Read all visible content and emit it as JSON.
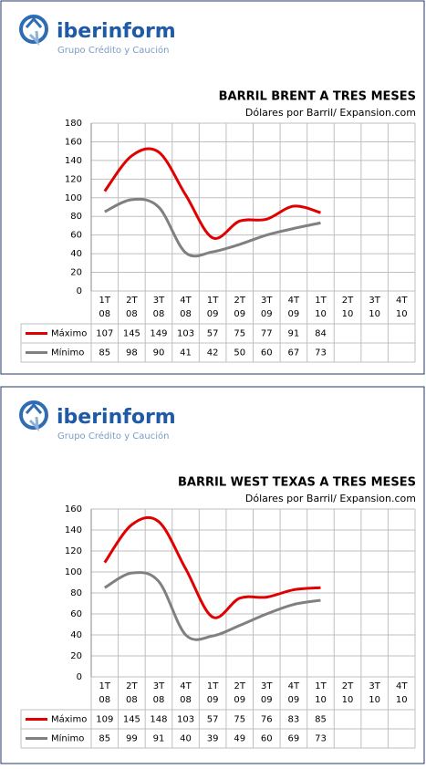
{
  "logo": {
    "brand": "iberinform",
    "tagline": "Grupo Crédito y Caución"
  },
  "chart_data": [
    {
      "type": "line",
      "title": "BARRIL BRENT A TRES MESES",
      "subtitle": "Dólares por Barril/ Expansion.com",
      "categories": [
        "1T 08",
        "2T 08",
        "3T 08",
        "4T 08",
        "1T 09",
        "2T 09",
        "3T 09",
        "4T 09",
        "1T 10",
        "2T 10",
        "3T 10",
        "4T 10"
      ],
      "series": [
        {
          "name": "Máximo",
          "color": "#e00000",
          "values": [
            107,
            145,
            149,
            103,
            57,
            75,
            77,
            91,
            84,
            null,
            null,
            null
          ]
        },
        {
          "name": "Mínimo",
          "color": "#808080",
          "values": [
            85,
            98,
            90,
            41,
            42,
            50,
            60,
            67,
            73,
            null,
            null,
            null
          ]
        }
      ],
      "ylim": [
        0,
        180
      ],
      "yticks": [
        0,
        20,
        40,
        60,
        80,
        100,
        120,
        140,
        160,
        180
      ],
      "grid": true
    },
    {
      "type": "line",
      "title": "BARRIL WEST TEXAS A TRES MESES",
      "subtitle": "Dólares por Barril/ Expansion.com",
      "categories": [
        "1T 08",
        "2T 08",
        "3T 08",
        "4T 08",
        "1T 09",
        "2T 09",
        "3T 09",
        "4T 09",
        "1T 10",
        "2T 10",
        "3T 10",
        "4T 10"
      ],
      "series": [
        {
          "name": "Máximo",
          "color": "#e00000",
          "values": [
            109,
            145,
            148,
            103,
            57,
            75,
            76,
            83,
            85,
            null,
            null,
            null
          ]
        },
        {
          "name": "Mínimo",
          "color": "#808080",
          "values": [
            85,
            99,
            91,
            40,
            39,
            49,
            60,
            69,
            73,
            null,
            null,
            null
          ]
        }
      ],
      "ylim": [
        0,
        160
      ],
      "yticks": [
        0,
        20,
        40,
        60,
        80,
        100,
        120,
        140,
        160
      ],
      "grid": true
    }
  ]
}
